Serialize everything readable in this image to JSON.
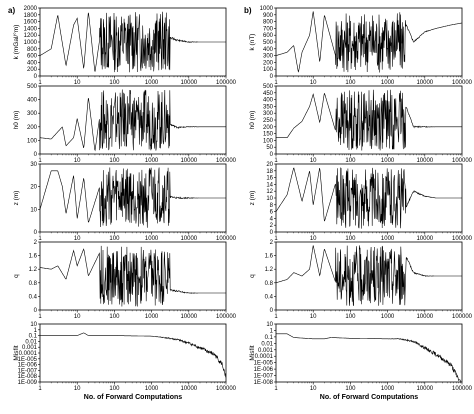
{
  "chart_data": [
    {
      "type": "line",
      "panel": "a",
      "row": 1,
      "label": "a)",
      "ylabel": "k (mGal/°m)",
      "xscale": "log",
      "xlim": [
        1,
        100000
      ],
      "yticks": [
        "0",
        "200",
        "400",
        "600",
        "800",
        "1000",
        "1200",
        "1400",
        "1600",
        "1800",
        "2000"
      ],
      "ylim": [
        0,
        2000
      ],
      "series": [
        {
          "x": [
            1,
            2,
            3,
            5,
            8,
            10,
            15,
            20,
            30,
            50,
            100,
            200,
            300,
            500,
            1000,
            1500,
            2000,
            5000,
            10000,
            20000,
            50000,
            100000
          ],
          "y": [
            600,
            800,
            1800,
            300,
            1500,
            1700,
            200,
            1900,
            100,
            1800,
            200,
            1900,
            100,
            1900,
            150,
            1900,
            1200,
            1050,
            1000,
            1000,
            1000,
            1000
          ]
        }
      ]
    },
    {
      "type": "line",
      "panel": "a",
      "row": 2,
      "ylabel": "h0 (m)",
      "xscale": "log",
      "xlim": [
        1,
        100000
      ],
      "yticks": [
        "0",
        "100",
        "200",
        "300",
        "400",
        "500"
      ],
      "ylim": [
        0,
        500
      ],
      "series": [
        {
          "x": [
            1,
            2,
            4,
            5,
            8,
            10,
            15,
            20,
            30,
            50,
            100,
            200,
            500,
            1000,
            1500,
            2000,
            3000,
            5000,
            10000,
            100000
          ],
          "y": [
            120,
            110,
            200,
            60,
            120,
            260,
            40,
            420,
            20,
            460,
            20,
            480,
            10,
            480,
            20,
            200,
            220,
            195,
            200,
            200
          ]
        }
      ]
    },
    {
      "type": "line",
      "panel": "a",
      "row": 3,
      "ylabel": "z (m)",
      "xscale": "log",
      "xlim": [
        1,
        100000
      ],
      "yticks": [
        "0",
        "10",
        "20",
        "30"
      ],
      "ylim": [
        0,
        30
      ],
      "series": [
        {
          "x": [
            1,
            2,
            3,
            4,
            5,
            8,
            10,
            15,
            20,
            50,
            100,
            200,
            500,
            1000,
            2000,
            5000,
            10000,
            20000,
            50000,
            100000
          ],
          "y": [
            10,
            27,
            27,
            20,
            8,
            25,
            6,
            24,
            4,
            25,
            3,
            25,
            2,
            24,
            16,
            15,
            15,
            15,
            15,
            15
          ]
        }
      ]
    },
    {
      "type": "line",
      "panel": "a",
      "row": 4,
      "ylabel": "q",
      "xscale": "log",
      "xlim": [
        1,
        100000
      ],
      "yticks": [
        "0",
        "0.4",
        "0.8",
        "1.2",
        "1.6",
        "2"
      ],
      "ylim": [
        0,
        2
      ],
      "series": [
        {
          "x": [
            1,
            2,
            3,
            5,
            8,
            10,
            15,
            20,
            50,
            100,
            200,
            500,
            1000,
            2000,
            3000,
            5000,
            10000,
            20000,
            50000,
            100000
          ],
          "y": [
            1.25,
            1.2,
            1.3,
            0.9,
            1.75,
            1.3,
            1.8,
            1.0,
            1.9,
            0.5,
            1.9,
            0.3,
            1.9,
            0.5,
            0.6,
            0.55,
            0.5,
            0.5,
            0.5,
            0.5
          ]
        }
      ]
    },
    {
      "type": "line",
      "panel": "a",
      "row": 5,
      "ylabel": "Misfit",
      "xscale": "log",
      "yscale": "log",
      "xlim": [
        1,
        100000
      ],
      "yticks": [
        "10",
        "1",
        "0.1",
        "0.01",
        "0.001",
        "0.0001",
        "1E-005",
        "1E-006",
        "1E-007",
        "1E-008",
        "1E-009"
      ],
      "ylim": [
        1e-09,
        10
      ],
      "xlabel": "No. of Forward Computations",
      "xticks": [
        "1",
        "10",
        "100",
        "1000",
        "10000",
        "100000"
      ],
      "series": [
        {
          "x": [
            1,
            10,
            15,
            20,
            100,
            1000,
            2000,
            5000,
            10000,
            20000,
            50000,
            80000,
            100000
          ],
          "y": [
            0.1,
            0.1,
            0.3,
            0.1,
            0.1,
            0.08,
            0.05,
            0.02,
            0.005,
            0.0008,
            5e-05,
            1e-06,
            3e-09
          ]
        }
      ]
    },
    {
      "type": "line",
      "panel": "b",
      "row": 1,
      "label": "b)",
      "ylabel": "k (nT)",
      "xscale": "log",
      "xlim": [
        1,
        100000
      ],
      "yticks": [
        "0",
        "100",
        "200",
        "300",
        "400",
        "500",
        "600",
        "700",
        "800",
        "900",
        "1000"
      ],
      "ylim": [
        0,
        1000
      ],
      "series": [
        {
          "x": [
            1,
            2,
            3,
            4,
            5,
            8,
            10,
            15,
            20,
            50,
            100,
            200,
            500,
            1000,
            2000,
            5000,
            10000,
            20000,
            50000,
            100000
          ],
          "y": [
            300,
            350,
            450,
            50,
            350,
            600,
            950,
            200,
            900,
            100,
            980,
            100,
            1000,
            150,
            1000,
            500,
            650,
            700,
            750,
            780
          ]
        }
      ]
    },
    {
      "type": "line",
      "panel": "b",
      "row": 2,
      "ylabel": "h0 (m)",
      "xscale": "log",
      "xlim": [
        1,
        100000
      ],
      "yticks": [
        "0",
        "50",
        "100",
        "150",
        "200",
        "250",
        "300",
        "350",
        "400",
        "450",
        "500"
      ],
      "ylim": [
        0,
        500
      ],
      "series": [
        {
          "x": [
            1,
            2,
            3,
            5,
            8,
            10,
            15,
            20,
            50,
            100,
            200,
            500,
            1000,
            2000,
            5000,
            10000,
            100000
          ],
          "y": [
            120,
            120,
            190,
            240,
            350,
            440,
            230,
            450,
            80,
            480,
            30,
            490,
            10,
            490,
            200,
            200,
            200
          ]
        }
      ]
    },
    {
      "type": "line",
      "panel": "b",
      "row": 3,
      "ylabel": "z (m)",
      "xscale": "log",
      "xlim": [
        1,
        100000
      ],
      "yticks": [
        "0",
        "2",
        "4",
        "6",
        "8",
        "10",
        "12",
        "14",
        "16",
        "18",
        "20"
      ],
      "ylim": [
        0,
        20
      ],
      "series": [
        {
          "x": [
            1,
            2,
            3,
            5,
            8,
            10,
            15,
            20,
            50,
            100,
            200,
            500,
            1000,
            2000,
            5000,
            10000,
            20000,
            50000,
            100000
          ],
          "y": [
            6,
            11,
            19,
            9,
            18,
            8,
            19,
            3,
            18,
            1,
            19,
            1,
            19,
            3,
            12,
            10.5,
            10,
            10,
            10
          ]
        }
      ]
    },
    {
      "type": "line",
      "panel": "b",
      "row": 4,
      "ylabel": "q",
      "xscale": "log",
      "xlim": [
        1,
        100000
      ],
      "yticks": [
        "0",
        "0.4",
        "0.8",
        "1.2",
        "1.6",
        "2"
      ],
      "ylim": [
        0,
        2
      ],
      "series": [
        {
          "x": [
            1,
            2,
            3,
            5,
            8,
            10,
            15,
            20,
            50,
            100,
            200,
            500,
            1000,
            2000,
            5000,
            10000,
            20000,
            50000,
            100000
          ],
          "y": [
            0.8,
            0.9,
            1.1,
            1.0,
            1.2,
            1.9,
            1.0,
            1.8,
            0.5,
            2.0,
            0.4,
            2.0,
            0.3,
            2.0,
            1.1,
            1.0,
            1.0,
            1.0,
            1.0
          ]
        }
      ]
    },
    {
      "type": "line",
      "panel": "b",
      "row": 5,
      "ylabel": "Misfit",
      "xscale": "log",
      "yscale": "log",
      "xlim": [
        1,
        100000
      ],
      "yticks": [
        "10",
        "1",
        "0.1",
        "0.01",
        "0.001",
        "0.0001",
        "1E-005",
        "1E-006",
        "1E-007",
        "1E-008"
      ],
      "ylim": [
        1e-08,
        10
      ],
      "xlabel": "No. of Forward Computations",
      "xticks": [
        "1",
        "10",
        "100",
        "1000",
        "10000",
        "100000"
      ],
      "series": [
        {
          "x": [
            1,
            2,
            3,
            10,
            20,
            30,
            100,
            1000,
            2000,
            5000,
            10000,
            20000,
            50000,
            100000
          ],
          "y": [
            0.3,
            0.3,
            0.08,
            0.05,
            0.05,
            0.08,
            0.06,
            0.05,
            0.05,
            0.02,
            0.002,
            0.0002,
            5e-06,
            3e-09
          ]
        }
      ]
    }
  ]
}
